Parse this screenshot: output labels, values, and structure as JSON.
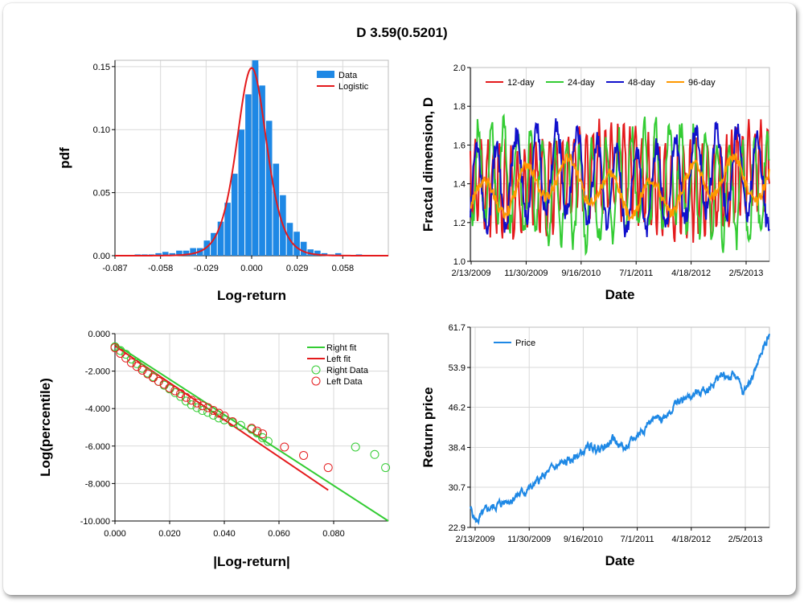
{
  "title": "D 3.59(0.5201)",
  "chart_data": [
    {
      "id": "hist",
      "type": "bar",
      "xlabel": "Log-return",
      "ylabel": "pdf",
      "xlim": [
        -0.087,
        0.087
      ],
      "ylim": [
        0,
        0.155
      ],
      "x_ticks": [
        "-0.087",
        "-0.058",
        "-0.029",
        "0.000",
        "0.029",
        "0.058"
      ],
      "y_ticks": [
        "0.00",
        "0.05",
        "0.10",
        "0.15"
      ],
      "grid": true,
      "legend_position": "top-right",
      "bin_width": 0.0044,
      "series": [
        {
          "name": "Data",
          "color": "#1e88e5",
          "bins": [
            [
              -0.0725,
              0.001
            ],
            [
              -0.0681,
              0.001
            ],
            [
              -0.0637,
              0.001
            ],
            [
              -0.0593,
              0.002
            ],
            [
              -0.0549,
              0.003
            ],
            [
              -0.0505,
              0.002
            ],
            [
              -0.0461,
              0.004
            ],
            [
              -0.0417,
              0.004
            ],
            [
              -0.0373,
              0.006
            ],
            [
              -0.0329,
              0.006
            ],
            [
              -0.0285,
              0.012
            ],
            [
              -0.0241,
              0.018
            ],
            [
              -0.0197,
              0.027
            ],
            [
              -0.0153,
              0.042
            ],
            [
              -0.0109,
              0.065
            ],
            [
              -0.0065,
              0.1
            ],
            [
              -0.0021,
              0.128
            ],
            [
              0.0023,
              0.152
            ],
            [
              0.0023,
              0.155
            ],
            [
              0.0067,
              0.135
            ],
            [
              0.0111,
              0.107
            ],
            [
              0.0155,
              0.073
            ],
            [
              0.0199,
              0.048
            ],
            [
              0.0243,
              0.026
            ],
            [
              0.0287,
              0.019
            ],
            [
              0.0331,
              0.011
            ],
            [
              0.0375,
              0.005
            ],
            [
              0.0419,
              0.004
            ],
            [
              0.0463,
              0.002
            ],
            [
              0.0507,
              0.001
            ],
            [
              0.0551,
              0.002
            ],
            [
              0.0683,
              0.001
            ]
          ]
        },
        {
          "name": "Logistic",
          "color": "#e41a1c",
          "center": 0.0,
          "scale": 0.0064,
          "peak": 0.149
        }
      ]
    },
    {
      "id": "fractal",
      "type": "line",
      "xlabel": "Date",
      "ylabel": "Fractal dimension, D",
      "ylim": [
        1.0,
        2.0
      ],
      "x_ticks": [
        "2/13/2009",
        "11/30/2009",
        "9/16/2010",
        "7/1/2011",
        "4/18/2012",
        "2/5/2013"
      ],
      "y_ticks": [
        "1.0",
        "1.2",
        "1.4",
        "1.6",
        "1.8",
        "2.0"
      ],
      "grid": true,
      "legend_position": "top",
      "series": [
        {
          "name": "12-day",
          "color": "#e41a1c",
          "period": 9,
          "amp": 0.22,
          "base": 1.42,
          "seed": 3
        },
        {
          "name": "24-day",
          "color": "#33cc33",
          "period": 18,
          "amp": 0.25,
          "base": 1.4,
          "seed": 7
        },
        {
          "name": "48-day",
          "color": "#1010cc",
          "period": 30,
          "amp": 0.22,
          "base": 1.42,
          "seed": 11
        },
        {
          "name": "96-day",
          "color": "#ff9900",
          "period": 60,
          "amp": 0.1,
          "base": 1.38,
          "seed": 17
        }
      ]
    },
    {
      "id": "tail",
      "type": "scatter",
      "xlabel": "|Log-return|",
      "ylabel": "Log(percentile)",
      "xlim": [
        0.0,
        0.1
      ],
      "ylim": [
        -10.0,
        0.0
      ],
      "x_ticks": [
        "0.000",
        "0.020",
        "0.040",
        "0.060",
        "0.080"
      ],
      "y_ticks": [
        "0.000",
        "-2.000",
        "-4.000",
        "-6.000",
        "-8.000",
        "-10.000"
      ],
      "grid": true,
      "legend_position": "top-right",
      "series": [
        {
          "name": "Right fit",
          "kind": "line",
          "color": "#33cc33",
          "x": [
            0.0,
            0.1
          ],
          "y": [
            -0.55,
            -10.0
          ]
        },
        {
          "name": "Left fit",
          "kind": "line",
          "color": "#e41a1c",
          "x": [
            0.0,
            0.078
          ],
          "y": [
            -0.65,
            -8.35
          ]
        },
        {
          "name": "Right Data",
          "kind": "points",
          "color": "#33cc33",
          "x": [
            0.0,
            0.002,
            0.004,
            0.006,
            0.008,
            0.01,
            0.012,
            0.014,
            0.016,
            0.018,
            0.02,
            0.022,
            0.024,
            0.026,
            0.028,
            0.03,
            0.032,
            0.034,
            0.036,
            0.038,
            0.04,
            0.043,
            0.046,
            0.05,
            0.052,
            0.054,
            0.056,
            0.088,
            0.095,
            0.099
          ],
          "y": [
            -0.7,
            -0.9,
            -1.1,
            -1.35,
            -1.6,
            -1.85,
            -2.1,
            -2.3,
            -2.55,
            -2.75,
            -2.95,
            -3.15,
            -3.35,
            -3.6,
            -3.8,
            -3.95,
            -4.1,
            -4.2,
            -4.35,
            -4.5,
            -4.6,
            -4.75,
            -4.9,
            -5.1,
            -5.3,
            -5.55,
            -5.75,
            -6.05,
            -6.45,
            -7.15
          ]
        },
        {
          "name": "Left Data",
          "kind": "points",
          "color": "#e41a1c",
          "x": [
            0.0,
            0.002,
            0.004,
            0.006,
            0.008,
            0.01,
            0.012,
            0.014,
            0.016,
            0.018,
            0.02,
            0.022,
            0.024,
            0.026,
            0.028,
            0.03,
            0.032,
            0.034,
            0.036,
            0.038,
            0.04,
            0.043,
            0.05,
            0.052,
            0.054,
            0.062,
            0.069,
            0.078
          ],
          "y": [
            -0.75,
            -1.05,
            -1.3,
            -1.55,
            -1.75,
            -1.95,
            -2.15,
            -2.35,
            -2.55,
            -2.7,
            -2.9,
            -3.05,
            -3.2,
            -3.4,
            -3.55,
            -3.7,
            -3.85,
            -3.95,
            -4.1,
            -4.25,
            -4.4,
            -4.7,
            -5.05,
            -5.2,
            -5.35,
            -6.05,
            -6.5,
            -7.15
          ]
        }
      ]
    },
    {
      "id": "price",
      "type": "line",
      "xlabel": "Date",
      "ylabel": "Return price",
      "ylim": [
        22.9,
        61.7
      ],
      "x_ticks": [
        "2/13/2009",
        "11/30/2009",
        "9/16/2010",
        "7/1/2011",
        "4/18/2012",
        "2/5/2013"
      ],
      "y_ticks": [
        "22.9",
        "30.7",
        "38.4",
        "46.2",
        "53.9",
        "61.7"
      ],
      "grid": true,
      "legend_position": "top-left",
      "series": [
        {
          "name": "Price",
          "color": "#1e88e5",
          "anchors": [
            [
              0.0,
              26.5
            ],
            [
              0.02,
              24.0
            ],
            [
              0.06,
              26.5
            ],
            [
              0.12,
              28.0
            ],
            [
              0.2,
              30.5
            ],
            [
              0.28,
              34.5
            ],
            [
              0.34,
              36.0
            ],
            [
              0.4,
              38.5
            ],
            [
              0.44,
              38.0
            ],
            [
              0.48,
              40.0
            ],
            [
              0.52,
              38.0
            ],
            [
              0.56,
              41.0
            ],
            [
              0.6,
              43.5
            ],
            [
              0.64,
              44.0
            ],
            [
              0.68,
              46.5
            ],
            [
              0.72,
              48.0
            ],
            [
              0.76,
              49.0
            ],
            [
              0.8,
              50.0
            ],
            [
              0.84,
              52.5
            ],
            [
              0.87,
              52.0
            ],
            [
              0.89,
              52.5
            ],
            [
              0.91,
              48.5
            ],
            [
              0.94,
              52.0
            ],
            [
              0.97,
              56.0
            ],
            [
              1.0,
              60.5
            ]
          ]
        }
      ]
    }
  ]
}
